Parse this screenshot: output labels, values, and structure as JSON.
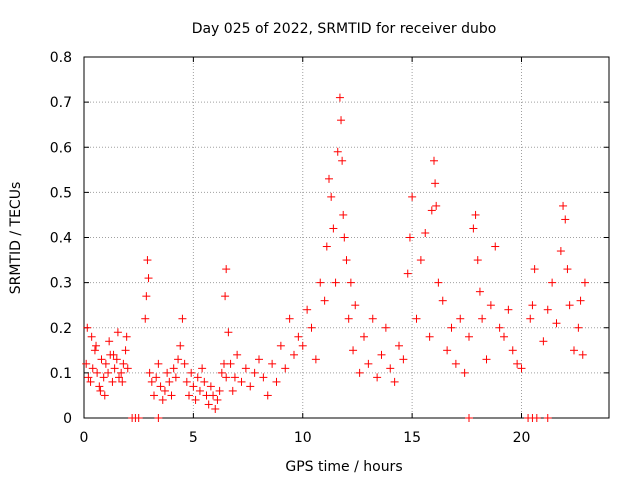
{
  "chart_data": {
    "type": "scatter",
    "title": "Day 025 of 2022, SRMTID for receiver dubo",
    "xlabel": "GPS time / hours",
    "ylabel": "SRMTID / TECUs",
    "xlim": [
      0,
      24
    ],
    "ylim": [
      0,
      0.8
    ],
    "xticks": [
      0,
      5,
      10,
      15,
      20
    ],
    "xtick_labels": [
      "0",
      "5",
      "10",
      "15",
      "20"
    ],
    "yticks": [
      0,
      0.1,
      0.2,
      0.3,
      0.4,
      0.5,
      0.6,
      0.7,
      0.8
    ],
    "ytick_labels": [
      "0",
      "0.1",
      "0.2",
      "0.3",
      "0.4",
      "0.5",
      "0.6",
      "0.7",
      "0.8"
    ],
    "grid": true,
    "marker": "+",
    "color": "#ff0000",
    "series": [
      {
        "name": "SRMTID",
        "x": [
          0.1,
          0.2,
          0.3,
          0.4,
          0.5,
          0.6,
          0.7,
          0.8,
          0.9,
          1.0,
          1.1,
          1.2,
          1.3,
          1.4,
          1.5,
          1.6,
          1.7,
          1.8,
          1.9,
          2.0,
          0.15,
          0.35,
          0.55,
          0.75,
          0.95,
          1.15,
          1.35,
          1.55,
          1.75,
          1.95,
          2.8,
          2.85,
          2.9,
          2.95,
          3.0,
          3.1,
          3.2,
          3.3,
          3.4,
          3.5,
          3.6,
          3.7,
          3.8,
          3.9,
          4.0,
          4.1,
          4.2,
          4.3,
          4.4,
          4.5,
          4.6,
          4.7,
          4.8,
          4.9,
          5.0,
          5.1,
          5.2,
          5.3,
          5.4,
          5.5,
          5.6,
          5.7,
          5.8,
          5.9,
          6.0,
          6.1,
          6.2,
          6.3,
          6.4,
          6.5,
          6.45,
          6.5,
          6.6,
          6.7,
          6.8,
          6.9,
          7.0,
          7.2,
          7.4,
          7.6,
          7.8,
          8.0,
          8.2,
          8.4,
          8.6,
          8.8,
          9.0,
          9.2,
          9.4,
          9.6,
          9.8,
          10.0,
          10.2,
          10.4,
          10.6,
          10.8,
          11.0,
          11.1,
          11.2,
          11.3,
          11.4,
          11.5,
          11.6,
          11.7,
          11.75,
          11.8,
          11.85,
          11.9,
          12.0,
          12.1,
          12.2,
          12.3,
          12.4,
          12.6,
          12.8,
          13.0,
          13.2,
          13.4,
          13.6,
          13.8,
          14.0,
          14.2,
          14.4,
          14.6,
          14.8,
          14.9,
          15.0,
          15.2,
          15.4,
          15.6,
          15.8,
          15.9,
          16.0,
          16.05,
          16.1,
          16.2,
          16.4,
          16.6,
          16.8,
          17.0,
          17.2,
          17.4,
          17.6,
          17.8,
          17.9,
          18.0,
          18.1,
          18.2,
          18.4,
          18.6,
          18.8,
          19.0,
          19.2,
          19.4,
          19.6,
          19.8,
          20.0,
          20.4,
          20.5,
          20.6,
          21.0,
          21.2,
          21.4,
          21.6,
          21.8,
          21.9,
          22.0,
          22.1,
          22.2,
          22.4,
          22.6,
          22.7,
          22.8,
          22.9,
          2.2,
          2.35,
          2.5,
          3.4,
          17.6,
          20.3,
          20.5,
          20.7,
          21.2
        ],
        "y": [
          0.12,
          0.09,
          0.08,
          0.11,
          0.15,
          0.1,
          0.07,
          0.13,
          0.09,
          0.12,
          0.1,
          0.14,
          0.08,
          0.11,
          0.13,
          0.09,
          0.1,
          0.12,
          0.15,
          0.11,
          0.2,
          0.18,
          0.16,
          0.06,
          0.05,
          0.17,
          0.14,
          0.19,
          0.08,
          0.18,
          0.22,
          0.27,
          0.35,
          0.31,
          0.1,
          0.08,
          0.05,
          0.09,
          0.12,
          0.07,
          0.04,
          0.06,
          0.1,
          0.08,
          0.05,
          0.11,
          0.09,
          0.13,
          0.16,
          0.22,
          0.12,
          0.08,
          0.05,
          0.1,
          0.07,
          0.04,
          0.09,
          0.06,
          0.11,
          0.08,
          0.05,
          0.03,
          0.07,
          0.05,
          0.02,
          0.04,
          0.06,
          0.1,
          0.12,
          0.09,
          0.27,
          0.33,
          0.19,
          0.12,
          0.06,
          0.09,
          0.14,
          0.08,
          0.11,
          0.07,
          0.1,
          0.13,
          0.09,
          0.05,
          0.12,
          0.08,
          0.16,
          0.11,
          0.22,
          0.14,
          0.18,
          0.16,
          0.24,
          0.2,
          0.13,
          0.3,
          0.26,
          0.38,
          0.53,
          0.49,
          0.42,
          0.3,
          0.59,
          0.71,
          0.66,
          0.57,
          0.45,
          0.4,
          0.35,
          0.22,
          0.3,
          0.15,
          0.25,
          0.1,
          0.18,
          0.12,
          0.22,
          0.09,
          0.14,
          0.2,
          0.11,
          0.08,
          0.16,
          0.13,
          0.32,
          0.4,
          0.49,
          0.22,
          0.35,
          0.41,
          0.18,
          0.46,
          0.57,
          0.52,
          0.47,
          0.3,
          0.26,
          0.15,
          0.2,
          0.12,
          0.22,
          0.1,
          0.18,
          0.42,
          0.45,
          0.35,
          0.28,
          0.22,
          0.13,
          0.25,
          0.38,
          0.2,
          0.18,
          0.24,
          0.15,
          0.12,
          0.11,
          0.22,
          0.25,
          0.33,
          0.17,
          0.24,
          0.3,
          0.21,
          0.37,
          0.47,
          0.44,
          0.33,
          0.25,
          0.15,
          0.2,
          0.26,
          0.14,
          0.3,
          0,
          0,
          0,
          0,
          0,
          0,
          0,
          0,
          0
        ]
      }
    ]
  }
}
